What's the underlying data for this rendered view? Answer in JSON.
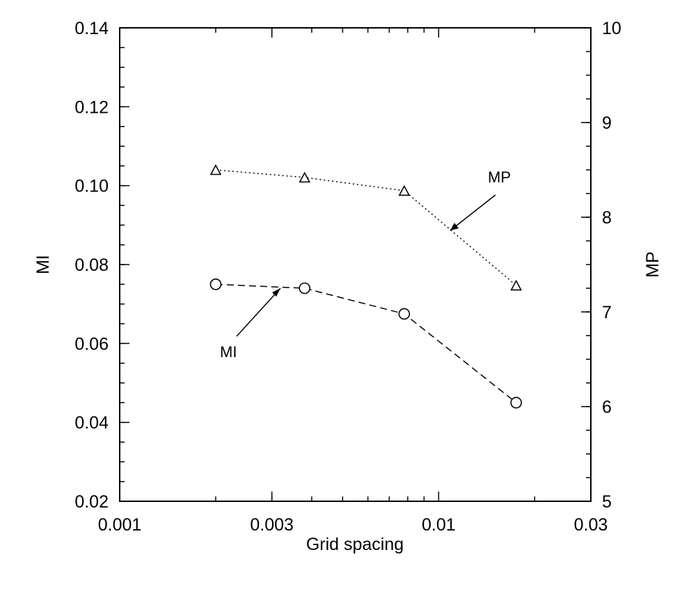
{
  "chart_data": {
    "type": "line",
    "xlabel": "Grid spacing",
    "ylabel_left": "MI",
    "ylabel_right": "MP",
    "x_scale": "log",
    "xlim": [
      0.001,
      0.03
    ],
    "ylim_left": [
      0.02,
      0.14
    ],
    "ylim_right": [
      5,
      10
    ],
    "x_ticks": [
      {
        "value": 0.001,
        "label": "0.001"
      },
      {
        "value": 0.003,
        "label": "0.003"
      },
      {
        "value": 0.01,
        "label": "0.01"
      },
      {
        "value": 0.03,
        "label": "0.03"
      }
    ],
    "y_left_ticks": [
      {
        "value": 0.02,
        "label": "0.02"
      },
      {
        "value": 0.04,
        "label": "0.04"
      },
      {
        "value": 0.06,
        "label": "0.06"
      },
      {
        "value": 0.08,
        "label": "0.08"
      },
      {
        "value": 0.1,
        "label": "0.10"
      },
      {
        "value": 0.12,
        "label": "0.12"
      },
      {
        "value": 0.14,
        "label": "0.14"
      }
    ],
    "y_right_ticks": [
      {
        "value": 5,
        "label": "5"
      },
      {
        "value": 6,
        "label": "6"
      },
      {
        "value": 7,
        "label": "7"
      },
      {
        "value": 8,
        "label": "8"
      },
      {
        "value": 9,
        "label": "9"
      },
      {
        "value": 10,
        "label": "10"
      }
    ],
    "grid": false,
    "series": [
      {
        "name": "MI",
        "axis": "left",
        "marker": "circle",
        "line_style": "dashed",
        "x": [
          0.002,
          0.0038,
          0.0078,
          0.0175
        ],
        "y": [
          0.075,
          0.074,
          0.0675,
          0.045
        ]
      },
      {
        "name": "MP",
        "axis": "right",
        "marker": "triangle",
        "line_style": "dotted",
        "x": [
          0.002,
          0.0038,
          0.0078,
          0.0175
        ],
        "y": [
          8.5,
          8.42,
          8.28,
          7.28
        ]
      }
    ],
    "annotations": [
      {
        "text": "MI",
        "series": "MI"
      },
      {
        "text": "MP",
        "series": "MP"
      }
    ],
    "colors": {
      "line": "#000000",
      "marker_fill": "#ffffff",
      "background": "#ffffff"
    }
  }
}
